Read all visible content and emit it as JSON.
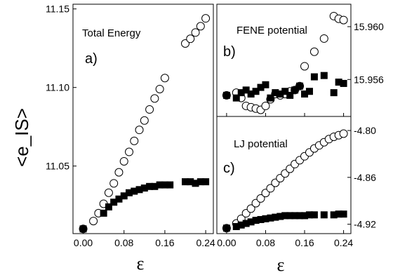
{
  "chart_data": [
    {
      "panel": "a)",
      "type": "scatter",
      "annotation": "Total Energy",
      "ylabel": "<e_IS>",
      "xlabel": "ε",
      "xlim": [
        -0.02,
        0.255
      ],
      "ylim": [
        11.007,
        11.153
      ],
      "x_ticks": [
        "0.00",
        "0.08",
        "0.16",
        "0.24"
      ],
      "x_tick_values": [
        0.0,
        0.08,
        0.16,
        0.24
      ],
      "y_ticks": [
        "11.05",
        "11.10",
        "11.15"
      ],
      "y_tick_values": [
        11.05,
        11.1,
        11.15
      ],
      "series": [
        {
          "marker": "open-circle",
          "x": [
            0.0,
            0.02,
            0.03,
            0.04,
            0.05,
            0.06,
            0.07,
            0.08,
            0.09,
            0.1,
            0.11,
            0.12,
            0.13,
            0.14,
            0.15,
            0.16,
            0.2,
            0.21,
            0.22,
            0.23,
            0.24
          ],
          "y": [
            11.01,
            11.015,
            11.02,
            11.026,
            11.033,
            11.039,
            11.046,
            11.053,
            11.059,
            11.066,
            11.073,
            11.079,
            11.086,
            11.093,
            11.099,
            11.106,
            11.128,
            11.131,
            11.135,
            11.139,
            11.144
          ]
        },
        {
          "marker": "filled-square",
          "x": [
            0.0,
            0.04,
            0.05,
            0.06,
            0.07,
            0.08,
            0.09,
            0.1,
            0.11,
            0.12,
            0.13,
            0.14,
            0.15,
            0.16,
            0.17,
            0.2,
            0.21,
            0.22,
            0.23,
            0.24
          ],
          "y": [
            11.01,
            11.02,
            11.024,
            11.027,
            11.029,
            11.031,
            11.033,
            11.034,
            11.035,
            11.036,
            11.037,
            11.037,
            11.038,
            11.038,
            11.038,
            11.04,
            11.04,
            11.039,
            11.04,
            11.04
          ]
        }
      ]
    },
    {
      "panel": "b)",
      "type": "scatter",
      "annotation": "FENE potential",
      "xlim": [
        -0.02,
        0.255
      ],
      "ylim": [
        15.9532,
        15.9617
      ],
      "y_ticks": [
        "15.960",
        "15.956"
      ],
      "y_tick_values": [
        15.96,
        15.956
      ],
      "series": [
        {
          "marker": "open-circle",
          "x": [
            0.0,
            0.02,
            0.03,
            0.04,
            0.05,
            0.06,
            0.07,
            0.08,
            0.09,
            0.1,
            0.11,
            0.12,
            0.13,
            0.14,
            0.15,
            0.16,
            0.18,
            0.2,
            0.22,
            0.23,
            0.24
          ],
          "y": [
            15.9548,
            15.955,
            15.9546,
            15.954,
            15.9539,
            15.9538,
            15.9537,
            15.954,
            15.9545,
            15.9549,
            15.9548,
            15.9549,
            15.9551,
            15.9552,
            15.9555,
            15.957,
            15.9581,
            15.9591,
            15.9608,
            15.9606,
            15.9605
          ]
        },
        {
          "marker": "filled-square",
          "x": [
            0.0,
            0.02,
            0.03,
            0.04,
            0.05,
            0.06,
            0.07,
            0.08,
            0.09,
            0.1,
            0.11,
            0.12,
            0.13,
            0.14,
            0.15,
            0.16,
            0.17,
            0.18,
            0.2,
            0.22,
            0.23,
            0.24
          ],
          "y": [
            15.9548,
            15.9546,
            15.955,
            15.9552,
            15.9549,
            15.9551,
            15.9554,
            15.9556,
            15.9546,
            15.955,
            15.9549,
            15.9551,
            15.9548,
            15.9552,
            15.9555,
            15.9549,
            15.9551,
            15.9562,
            15.9563,
            15.955,
            15.9558,
            15.9557
          ]
        }
      ]
    },
    {
      "panel": "c)",
      "type": "scatter",
      "annotation": "LJ potential",
      "xlabel": "ε",
      "xlim": [
        -0.02,
        0.255
      ],
      "ylim": [
        -4.932,
        -4.782
      ],
      "x_ticks": [
        "0.00",
        "0.08",
        "0.16",
        "0.24"
      ],
      "x_tick_values": [
        0.0,
        0.08,
        0.16,
        0.24
      ],
      "y_ticks": [
        "-4.80",
        "-4.86",
        "-4.92"
      ],
      "y_tick_values": [
        -4.8,
        -4.86,
        -4.92
      ],
      "series": [
        {
          "marker": "open-circle",
          "x": [
            0.0,
            0.02,
            0.03,
            0.04,
            0.05,
            0.06,
            0.07,
            0.08,
            0.09,
            0.1,
            0.11,
            0.12,
            0.13,
            0.14,
            0.15,
            0.16,
            0.17,
            0.18,
            0.19,
            0.2,
            0.21,
            0.22,
            0.23,
            0.24
          ],
          "y": [
            -4.925,
            -4.919,
            -4.913,
            -4.906,
            -4.9,
            -4.893,
            -4.887,
            -4.88,
            -4.874,
            -4.867,
            -4.861,
            -4.855,
            -4.849,
            -4.843,
            -4.838,
            -4.833,
            -4.828,
            -4.823,
            -4.819,
            -4.815,
            -4.811,
            -4.808,
            -4.806,
            -4.804
          ]
        },
        {
          "marker": "filled-square",
          "x": [
            0.0,
            0.02,
            0.03,
            0.04,
            0.05,
            0.06,
            0.07,
            0.08,
            0.09,
            0.1,
            0.11,
            0.12,
            0.13,
            0.14,
            0.15,
            0.16,
            0.17,
            0.18,
            0.2,
            0.22,
            0.23,
            0.24
          ],
          "y": [
            -4.925,
            -4.923,
            -4.921,
            -4.919,
            -4.917,
            -4.915,
            -4.914,
            -4.913,
            -4.912,
            -4.911,
            -4.91,
            -4.909,
            -4.909,
            -4.909,
            -4.909,
            -4.909,
            -4.908,
            -4.908,
            -4.908,
            -4.908,
            -4.907,
            -4.907
          ]
        }
      ]
    }
  ]
}
